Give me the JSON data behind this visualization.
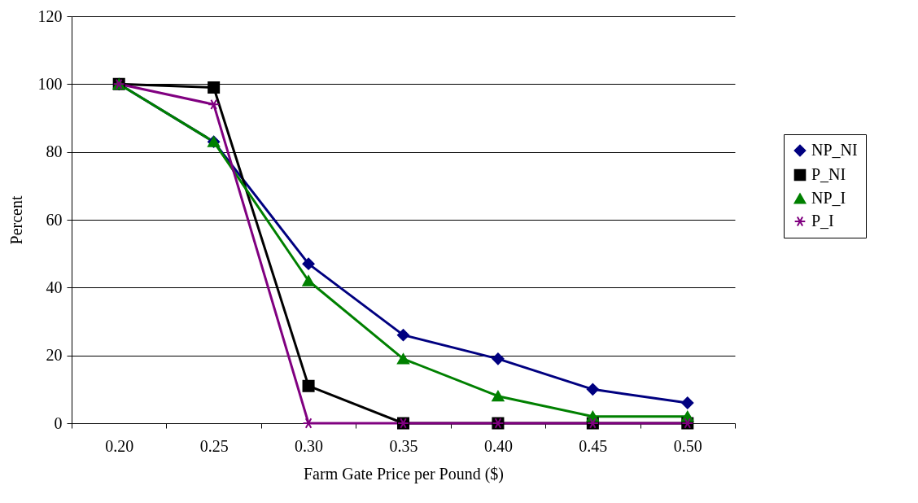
{
  "chart_data": {
    "type": "line",
    "xlabel": "Farm Gate Price per Pound ($)",
    "ylabel": "Percent",
    "categories": [
      "0.20",
      "0.25",
      "0.30",
      "0.35",
      "0.40",
      "0.45",
      "0.50"
    ],
    "series": [
      {
        "name": "NP_NI",
        "color": "#000080",
        "marker": "diamond",
        "values": [
          100,
          83,
          47,
          26,
          19,
          10,
          6
        ]
      },
      {
        "name": "P_NI",
        "color": "#000000",
        "marker": "square",
        "values": [
          100,
          99,
          11,
          0,
          0,
          0,
          0
        ]
      },
      {
        "name": "NP_I",
        "color": "#008000",
        "marker": "triangle",
        "values": [
          100,
          83,
          42,
          19,
          8,
          2,
          2
        ]
      },
      {
        "name": "P_I",
        "color": "#800080",
        "marker": "cross",
        "values": [
          100,
          94,
          0,
          0,
          0,
          0,
          0
        ]
      }
    ],
    "ylim": [
      0,
      120
    ],
    "yticks": [
      0,
      20,
      40,
      60,
      80,
      100,
      120
    ],
    "grid": "y",
    "legend": "right",
    "line_style": "solid"
  }
}
